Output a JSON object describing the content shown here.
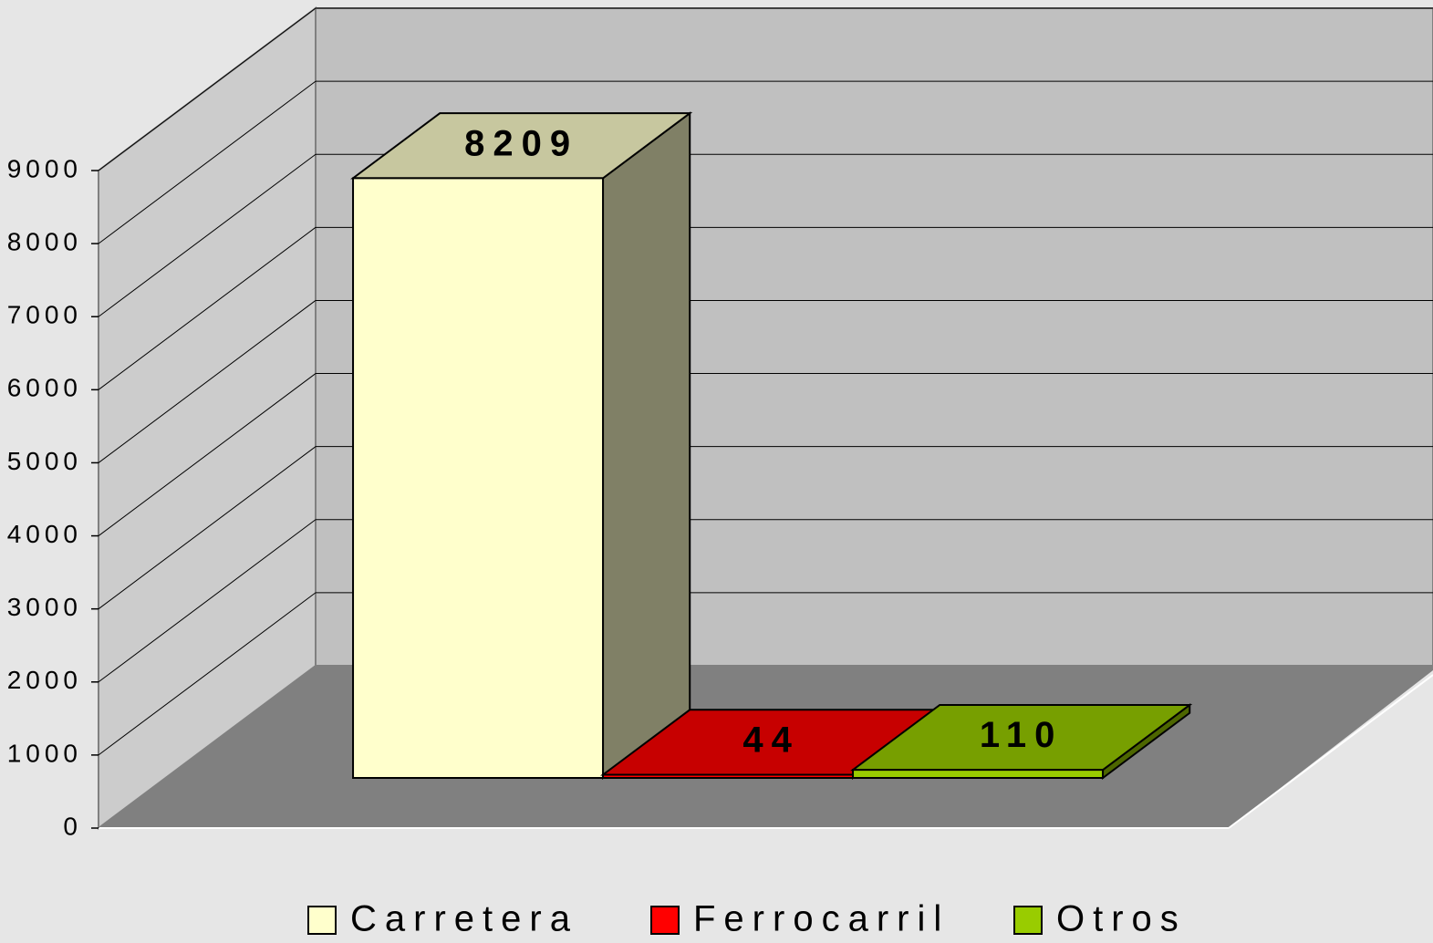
{
  "chart_data": {
    "type": "bar3d",
    "series": [
      {
        "name": "Carretera",
        "color": "#ffffcc",
        "values": [
          8209
        ]
      },
      {
        "name": "Ferrocarril",
        "color": "#ff0000",
        "values": [
          44
        ]
      },
      {
        "name": "Otros",
        "color": "#99cc00",
        "values": [
          110
        ]
      }
    ],
    "ylim": [
      0,
      9000
    ],
    "yticks": [
      0,
      1000,
      2000,
      3000,
      4000,
      5000,
      6000,
      7000,
      8000,
      9000
    ],
    "grid": true,
    "legend": "bottom"
  }
}
